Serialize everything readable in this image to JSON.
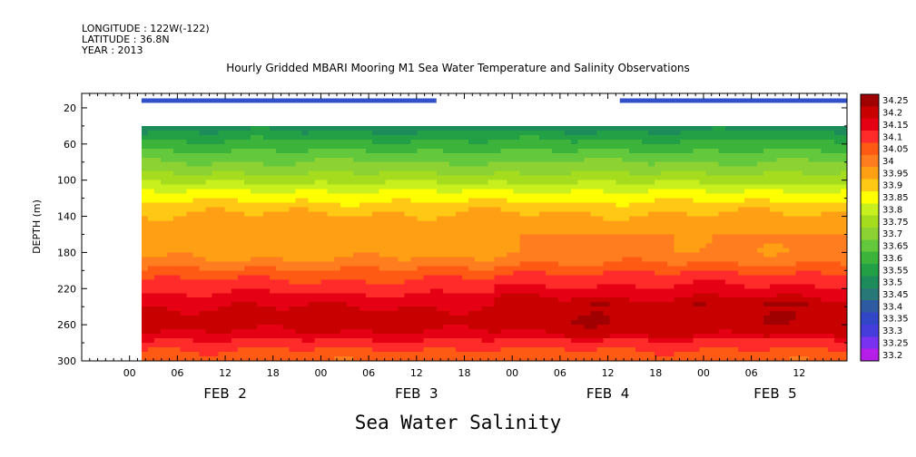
{
  "header": {
    "longitude": "LONGITUDE : 122W(-122)",
    "latitude": "LATITUDE : 36.8N",
    "year": "YEAR : 2013"
  },
  "chart_data": {
    "type": "heatmap",
    "title": "Hourly Gridded MBARI Mooring M1 Sea Water Temperature and Salinity Observations",
    "ylabel": "DEPTH (m)",
    "xlabel": "",
    "footer_label": "Sea Water Salinity",
    "y_ticks": [
      20,
      60,
      100,
      140,
      180,
      220,
      260,
      300
    ],
    "ylim": [
      300,
      4
    ],
    "x_unit": "hours since FEB 1 18:00",
    "xlim": [
      0,
      96
    ],
    "x_tick_labels": [
      {
        "h": 6,
        "label": "00"
      },
      {
        "h": 12,
        "label": "06"
      },
      {
        "h": 18,
        "label": "12"
      },
      {
        "h": 24,
        "label": "18"
      },
      {
        "h": 30,
        "label": "00"
      },
      {
        "h": 36,
        "label": "06"
      },
      {
        "h": 42,
        "label": "12"
      },
      {
        "h": 48,
        "label": "18"
      },
      {
        "h": 54,
        "label": "00"
      },
      {
        "h": 60,
        "label": "06"
      },
      {
        "h": 66,
        "label": "12"
      },
      {
        "h": 72,
        "label": "18"
      },
      {
        "h": 78,
        "label": "00"
      },
      {
        "h": 84,
        "label": "06"
      },
      {
        "h": 90,
        "label": "12"
      }
    ],
    "day_labels": [
      {
        "h": 18,
        "label": "FEB  2"
      },
      {
        "h": 42,
        "label": "FEB  3"
      },
      {
        "h": 66,
        "label": "FEB  4"
      },
      {
        "h": 87,
        "label": "FEB  5"
      }
    ],
    "data_start_hour": 7.5,
    "data_top_depth": 40,
    "surface_depth": 12,
    "surface_segments": [
      [
        7.5,
        44.5
      ],
      [
        67.5,
        96
      ]
    ],
    "profile": [
      {
        "depth": 40,
        "value": 33.52
      },
      {
        "depth": 50,
        "value": 33.57
      },
      {
        "depth": 60,
        "value": 33.62
      },
      {
        "depth": 70,
        "value": 33.66
      },
      {
        "depth": 80,
        "value": 33.7
      },
      {
        "depth": 90,
        "value": 33.74
      },
      {
        "depth": 100,
        "value": 33.78
      },
      {
        "depth": 110,
        "value": 33.84
      },
      {
        "depth": 120,
        "value": 33.88
      },
      {
        "depth": 130,
        "value": 33.93
      },
      {
        "depth": 140,
        "value": 33.96
      },
      {
        "depth": 150,
        "value": 33.98
      },
      {
        "depth": 160,
        "value": 33.98
      },
      {
        "depth": 170,
        "value": 33.98
      },
      {
        "depth": 180,
        "value": 33.98
      },
      {
        "depth": 190,
        "value": 34.01
      },
      {
        "depth": 200,
        "value": 34.06
      },
      {
        "depth": 210,
        "value": 34.1
      },
      {
        "depth": 220,
        "value": 34.13
      },
      {
        "depth": 230,
        "value": 34.17
      },
      {
        "depth": 240,
        "value": 34.2
      },
      {
        "depth": 250,
        "value": 34.22
      },
      {
        "depth": 260,
        "value": 34.22
      },
      {
        "depth": 270,
        "value": 34.19
      },
      {
        "depth": 280,
        "value": 34.13
      },
      {
        "depth": 290,
        "value": 34.09
      },
      {
        "depth": 300,
        "value": 34.06
      }
    ],
    "colorbar": {
      "levels": [
        "34.25",
        "34.2",
        "34.15",
        "34.1",
        "34.05",
        "34",
        "33.95",
        "33.9",
        "33.85",
        "33.8",
        "33.75",
        "33.7",
        "33.65",
        "33.6",
        "33.55",
        "33.5",
        "33.45",
        "33.4",
        "33.35",
        "33.3",
        "33.25",
        "33.2"
      ],
      "colors": [
        "#a00000",
        "#c80000",
        "#e60014",
        "#ff2a2a",
        "#ff5a14",
        "#ff7d1e",
        "#ffa014",
        "#ffc814",
        "#ffff00",
        "#c8f01e",
        "#a5dc1e",
        "#8cd232",
        "#64c83c",
        "#3cb43c",
        "#23a046",
        "#1e8c5a",
        "#287878",
        "#2d5aa0",
        "#3246c8",
        "#463cdc",
        "#7832f0",
        "#b41ee6"
      ]
    }
  }
}
